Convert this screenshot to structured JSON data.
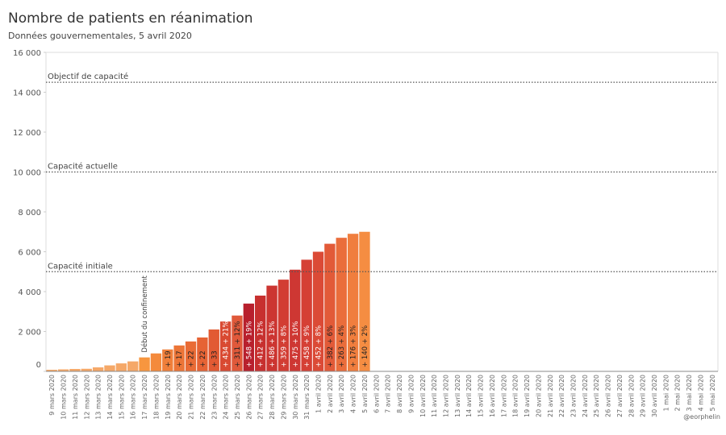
{
  "chart_data": {
    "type": "bar",
    "title": "Nombre de patients en réanimation",
    "subtitle": "Données gouvernementales, 5 avril 2020",
    "credit": "@eorphelin",
    "categories": [
      "9 mars 2020",
      "10 mars 2020",
      "11 mars 2020",
      "12 mars 2020",
      "13 mars 2020",
      "14 mars 2020",
      "15 mars 2020",
      "16 mars 2020",
      "17 mars 2020",
      "18 mars 2020",
      "19 mars 2020",
      "20 mars 2020",
      "21 mars 2020",
      "22 mars 2020",
      "23 mars 2020",
      "24 mars 2020",
      "25 mars 2020",
      "26 mars 2020",
      "27 mars 2020",
      "28 mars 2020",
      "29 mars 2020",
      "30 mars 2020",
      "31 mars 2020",
      "1 avril 2020",
      "2 avril 2020",
      "3 avril 2020",
      "4 avril 2020",
      "5 avril 2020",
      "6 avril 2020",
      "7 avril 2020",
      "8 avril 2020",
      "9 avril 2020",
      "10 avril 2020",
      "11 avril 2020",
      "12 avril 2020",
      "13 avril 2020",
      "14 avril 2020",
      "15 avril 2020",
      "16 avril 2020",
      "17 avril 2020",
      "18 avril 2020",
      "19 avril 2020",
      "20 avril 2020",
      "21 avril 2020",
      "22 avril 2020",
      "23 avril 2020",
      "24 avril 2020",
      "25 avril 2020",
      "26 avril 2020",
      "27 avril 2020",
      "28 avril 2020",
      "29 avril 2020",
      "30 avril 2020",
      "1 mai 2020",
      "2 mai 2020",
      "3 mai 2020",
      "4 mai 2020",
      "5 mai 2020"
    ],
    "values": [
      80,
      100,
      120,
      130,
      200,
      300,
      400,
      500,
      700,
      900,
      1100,
      1300,
      1500,
      1700,
      2100,
      2500,
      2800,
      3400,
      3800,
      4300,
      4600,
      5100,
      5600,
      6000,
      6400,
      6700,
      6900,
      7000,
      null,
      null,
      null,
      null,
      null,
      null,
      null,
      null,
      null,
      null,
      null,
      null,
      null,
      null,
      null,
      null,
      null,
      null,
      null,
      null,
      null,
      null,
      null,
      null,
      null,
      null,
      null,
      null,
      null,
      null
    ],
    "bar_labels": [
      null,
      null,
      null,
      null,
      null,
      null,
      null,
      null,
      null,
      null,
      "+ 19",
      "+ 17",
      "+ 22",
      "+ 22",
      "+ 33",
      "+ 434 + 21%",
      "+ 311 + 12%",
      "+ 548 + 19%",
      "+ 412 + 12%",
      "+ 486 + 13%",
      "+ 359 + 8%",
      "+ 475 + 10%",
      "+ 458 + 9%",
      "+ 452 + 8%",
      "+ 382 + 6%",
      "+ 263 + 4%",
      "+ 176 + 3%",
      "+ 140 + 2%",
      null,
      null,
      null,
      null,
      null,
      null,
      null,
      null,
      null,
      null,
      null,
      null,
      null,
      null,
      null,
      null,
      null,
      null,
      null,
      null,
      null,
      null,
      null,
      null,
      null,
      null,
      null,
      null,
      null,
      null
    ],
    "colors": [
      "#f5a868",
      "#f5a868",
      "#f5a868",
      "#f5a868",
      "#f5a868",
      "#f5a868",
      "#f5a868",
      "#f5a868",
      "#f7963f",
      "#f48a3c",
      "#f07f3a",
      "#ec7537",
      "#e96b35",
      "#e66334",
      "#e25a33",
      "#d94a32",
      "#e0593a",
      "#b8202d",
      "#c7302f",
      "#cc3531",
      "#d23d33",
      "#ce3733",
      "#d54035",
      "#db4a36",
      "#e25a38",
      "#ea6d3b",
      "#f07e3e",
      "#f58d42",
      null,
      null,
      null,
      null,
      null,
      null,
      null,
      null,
      null,
      null,
      null,
      null,
      null,
      null,
      null,
      null,
      null,
      null,
      null,
      null,
      null,
      null,
      null,
      null,
      null,
      null,
      null,
      null,
      null,
      null
    ],
    "ylim": [
      0,
      16000
    ],
    "yticks": [
      0,
      {
        "value": 2000,
        "label": "2 000"
      },
      {
        "value": 4000,
        "label": "4 000"
      },
      {
        "value": 6000,
        "label": "6 000"
      },
      {
        "value": 8000,
        "label": "8 000"
      },
      {
        "value": 10000,
        "label": "10 000"
      },
      {
        "value": 12000,
        "label": "12 000"
      },
      {
        "value": 14000,
        "label": "14 000"
      },
      {
        "value": 16000,
        "label": "16 000"
      }
    ],
    "reference_lines": [
      {
        "value": 5000,
        "label": "Capacité initiale"
      },
      {
        "value": 10000,
        "label": "Capacité actuelle"
      },
      {
        "value": 14500,
        "label": "Objectif de capacité"
      }
    ],
    "vertical_annotation": {
      "category_index": 8,
      "label": "Début du confinement"
    }
  }
}
